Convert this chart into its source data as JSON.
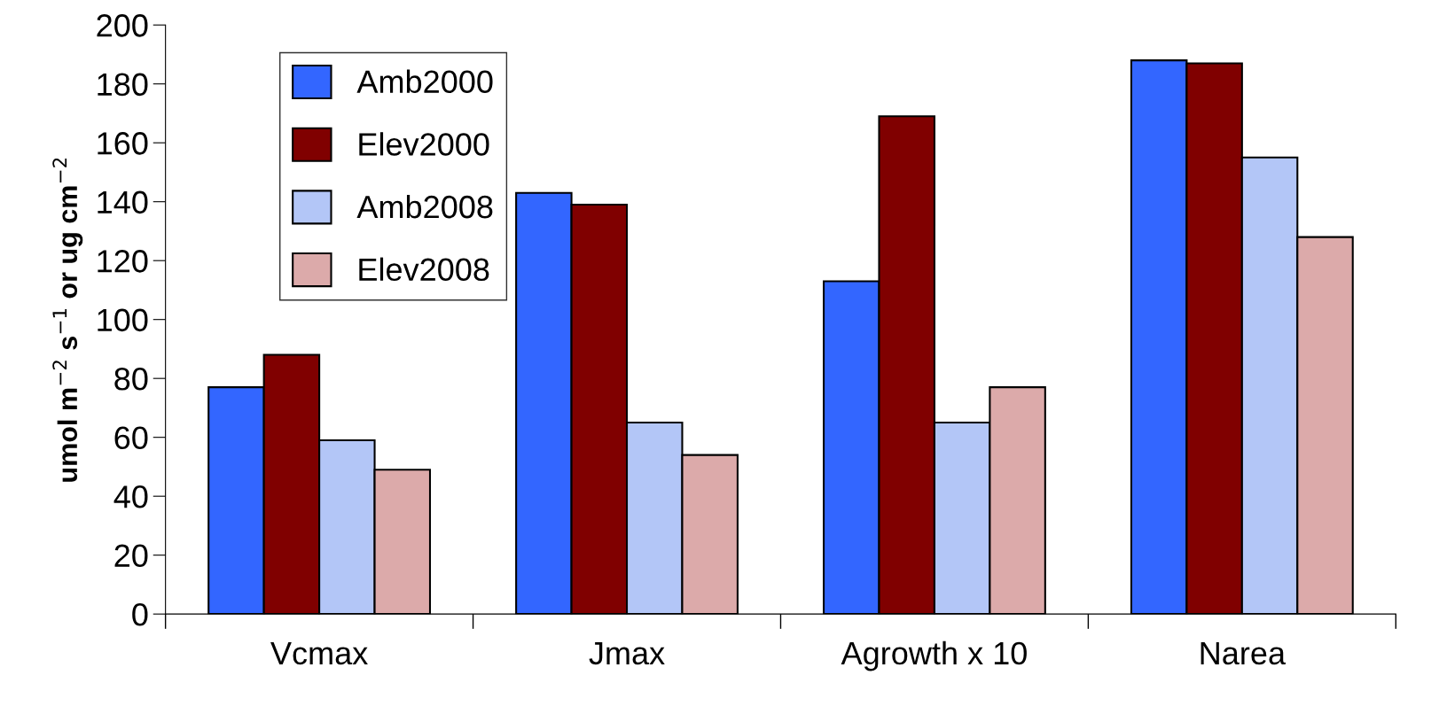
{
  "chart_data": {
    "type": "bar",
    "ylabel": "umol m$^{−2}$ s$^{−1}$ or ug cm$^{−2}$",
    "categories": [
      "Vcmax",
      "Jmax",
      "Agrowth x 10",
      "Narea"
    ],
    "series": [
      {
        "name": "Amb2000",
        "color": "#3366ff",
        "values": [
          77,
          143,
          113,
          188
        ]
      },
      {
        "name": "Elev2000",
        "color": "#800000",
        "values": [
          88,
          139,
          169,
          187
        ]
      },
      {
        "name": "Amb2008",
        "color": "#b3c6f7",
        "values": [
          59,
          65,
          65,
          155
        ]
      },
      {
        "name": "Elev2008",
        "color": "#dcaaaa",
        "values": [
          49,
          54,
          77,
          128
        ]
      }
    ],
    "ylim": [
      0,
      200
    ],
    "yticks": [
      0,
      20,
      40,
      60,
      80,
      100,
      120,
      140,
      160,
      180,
      200
    ],
    "grid": false,
    "legend": "top left"
  }
}
